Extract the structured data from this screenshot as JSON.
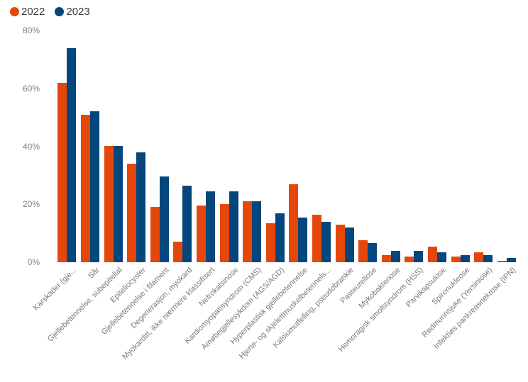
{
  "chart_data": {
    "type": "bar",
    "title": "",
    "ylim": [
      0,
      80
    ],
    "grid": false,
    "legend_position": "top-left",
    "yticks": [
      {
        "value": 0,
        "label": "0%"
      },
      {
        "value": 20,
        "label": "20%"
      },
      {
        "value": 40,
        "label": "40%"
      },
      {
        "value": 60,
        "label": "60%"
      },
      {
        "value": 80,
        "label": "80%"
      }
    ],
    "categories": [
      "Karskader (gje...",
      "Sår",
      "Gjellebetennelse, subepitelial",
      "Epiteliocyster",
      "Gjellebetennelse i filament",
      "Degenerasjon, myokard",
      "Myokarditt, ikke nærmere klassifisert",
      "Nefrokalsinose",
      "Kardiomyopatisyndrom (CMS)",
      "Amøbegjellesykdom (AGS/AGD)",
      "Hyperplastisk gjellebetennelse",
      "Hjerte- og skjelettmuskelbetennels...",
      "Kalsiumutfelling, pseudobrankie",
      "Pasteurellose",
      "Mykobakteriose",
      "Hemoragisk smoltsyndrom (HSS)",
      "Parvikapsulose",
      "Spironukleose",
      "Rødmunnsjuke (Yersiniose)",
      "Infektiøs pankreasnekrose (IPN)"
    ],
    "series": [
      {
        "name": "2022",
        "color": "#E5470B",
        "values": [
          62,
          51,
          40,
          34,
          19,
          7,
          19.5,
          20,
          21,
          13.5,
          27,
          16.5,
          13,
          7.5,
          2.5,
          2,
          5.5,
          2,
          3.5,
          0.5
        ]
      },
      {
        "name": "2023",
        "color": "#05477C",
        "values": [
          74,
          52,
          40,
          38,
          29.5,
          26.5,
          24.5,
          24.5,
          21,
          17,
          15.5,
          14,
          12,
          6.5,
          4,
          4,
          3.5,
          2.5,
          2.5,
          1.5
        ]
      }
    ]
  }
}
